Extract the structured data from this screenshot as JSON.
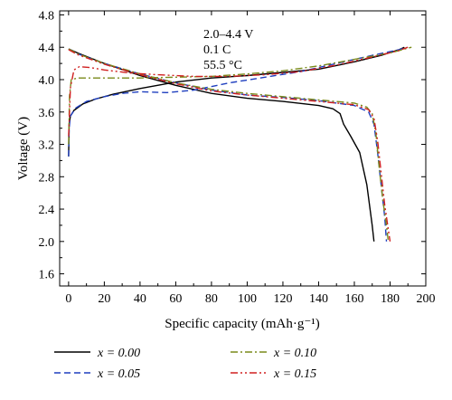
{
  "chart_data": {
    "type": "line",
    "xlabel": "Specific capacity (mAh·g⁻¹)",
    "ylabel": "Voltage (V)",
    "xlim": [
      -5,
      200
    ],
    "ylim": [
      1.45,
      4.85
    ],
    "x_ticks": [
      0,
      20,
      40,
      60,
      80,
      100,
      120,
      140,
      160,
      180,
      200
    ],
    "y_ticks": [
      1.6,
      2.0,
      2.4,
      2.8,
      3.2,
      3.6,
      4.0,
      4.4,
      4.8
    ],
    "x_tick_labels": [
      "0",
      "20",
      "40",
      "60",
      "80",
      "100",
      "120",
      "140",
      "160",
      "180",
      "200"
    ],
    "y_tick_labels": [
      "1.6",
      "2.0",
      "2.4",
      "2.8",
      "3.2",
      "3.6",
      "4.0",
      "4.4",
      "4.8"
    ],
    "grid": false,
    "legend_position": "bottom",
    "annotations": [
      "2.0–4.4 V",
      "0.1 C",
      "55.5 °C"
    ],
    "series": [
      {
        "name": "x = 0.00",
        "color": "#000000",
        "dash": "solid",
        "charge": [
          [
            0,
            3.05
          ],
          [
            0.3,
            3.45
          ],
          [
            1,
            3.55
          ],
          [
            3,
            3.62
          ],
          [
            8,
            3.7
          ],
          [
            15,
            3.76
          ],
          [
            25,
            3.82
          ],
          [
            40,
            3.89
          ],
          [
            60,
            3.97
          ],
          [
            80,
            4.02
          ],
          [
            100,
            4.05
          ],
          [
            120,
            4.09
          ],
          [
            140,
            4.13
          ],
          [
            160,
            4.22
          ],
          [
            175,
            4.3
          ],
          [
            185,
            4.37
          ],
          [
            188,
            4.4
          ]
        ],
        "discharge": [
          [
            0,
            4.38
          ],
          [
            5,
            4.33
          ],
          [
            20,
            4.2
          ],
          [
            40,
            4.05
          ],
          [
            60,
            3.93
          ],
          [
            80,
            3.83
          ],
          [
            100,
            3.77
          ],
          [
            120,
            3.73
          ],
          [
            140,
            3.68
          ],
          [
            148,
            3.64
          ],
          [
            152,
            3.58
          ],
          [
            154,
            3.45
          ],
          [
            158,
            3.3
          ],
          [
            163,
            3.1
          ],
          [
            167,
            2.7
          ],
          [
            170,
            2.2
          ],
          [
            171,
            2.0
          ]
        ]
      },
      {
        "name": "x = 0.05",
        "color": "#1f3fbf",
        "dash": "dashed",
        "charge": [
          [
            0,
            3.05
          ],
          [
            0.3,
            3.4
          ],
          [
            1,
            3.55
          ],
          [
            4,
            3.65
          ],
          [
            10,
            3.73
          ],
          [
            20,
            3.79
          ],
          [
            30,
            3.83
          ],
          [
            40,
            3.85
          ],
          [
            55,
            3.84
          ],
          [
            70,
            3.87
          ],
          [
            90,
            3.96
          ],
          [
            110,
            4.03
          ],
          [
            130,
            4.1
          ],
          [
            150,
            4.2
          ],
          [
            170,
            4.3
          ],
          [
            185,
            4.37
          ],
          [
            189,
            4.4
          ]
        ],
        "discharge": [
          [
            0,
            4.38
          ],
          [
            5,
            4.32
          ],
          [
            20,
            4.2
          ],
          [
            40,
            4.07
          ],
          [
            60,
            3.96
          ],
          [
            80,
            3.87
          ],
          [
            100,
            3.81
          ],
          [
            120,
            3.78
          ],
          [
            140,
            3.74
          ],
          [
            160,
            3.68
          ],
          [
            168,
            3.6
          ],
          [
            171,
            3.45
          ],
          [
            173,
            3.1
          ],
          [
            175,
            2.7
          ],
          [
            177,
            2.3
          ],
          [
            178,
            2.0
          ]
        ]
      },
      {
        "name": "x = 0.10",
        "color": "#7a8a1a",
        "dash": "dashdot",
        "charge": [
          [
            0,
            3.2
          ],
          [
            0.5,
            3.8
          ],
          [
            1.5,
            4.0
          ],
          [
            5,
            4.02
          ],
          [
            20,
            4.02
          ],
          [
            40,
            4.02
          ],
          [
            60,
            4.03
          ],
          [
            80,
            4.04
          ],
          [
            100,
            4.07
          ],
          [
            120,
            4.11
          ],
          [
            140,
            4.17
          ],
          [
            160,
            4.25
          ],
          [
            180,
            4.33
          ],
          [
            192,
            4.4
          ]
        ],
        "discharge": [
          [
            0,
            4.38
          ],
          [
            5,
            4.32
          ],
          [
            20,
            4.2
          ],
          [
            40,
            4.07
          ],
          [
            60,
            3.96
          ],
          [
            80,
            3.88
          ],
          [
            100,
            3.83
          ],
          [
            120,
            3.79
          ],
          [
            140,
            3.75
          ],
          [
            160,
            3.71
          ],
          [
            167,
            3.66
          ],
          [
            170,
            3.58
          ],
          [
            172,
            3.35
          ],
          [
            174,
            2.9
          ],
          [
            176,
            2.5
          ],
          [
            178,
            2.2
          ],
          [
            179,
            2.0
          ]
        ]
      },
      {
        "name": "x = 0.15",
        "color": "#d02020",
        "dash": "dashdotdot",
        "charge": [
          [
            0,
            3.3
          ],
          [
            1,
            3.9
          ],
          [
            3,
            4.12
          ],
          [
            6,
            4.16
          ],
          [
            12,
            4.15
          ],
          [
            20,
            4.12
          ],
          [
            35,
            4.08
          ],
          [
            50,
            4.06
          ],
          [
            70,
            4.04
          ],
          [
            90,
            4.04
          ],
          [
            110,
            4.06
          ],
          [
            130,
            4.1
          ],
          [
            150,
            4.18
          ],
          [
            170,
            4.28
          ],
          [
            185,
            4.36
          ],
          [
            190,
            4.4
          ]
        ],
        "discharge": [
          [
            0,
            4.37
          ],
          [
            5,
            4.31
          ],
          [
            20,
            4.19
          ],
          [
            40,
            4.06
          ],
          [
            60,
            3.95
          ],
          [
            80,
            3.86
          ],
          [
            100,
            3.81
          ],
          [
            120,
            3.77
          ],
          [
            140,
            3.73
          ],
          [
            160,
            3.69
          ],
          [
            168,
            3.63
          ],
          [
            171,
            3.52
          ],
          [
            173,
            3.25
          ],
          [
            175,
            2.85
          ],
          [
            177,
            2.45
          ],
          [
            179,
            2.15
          ],
          [
            180,
            2.0
          ]
        ]
      }
    ]
  }
}
